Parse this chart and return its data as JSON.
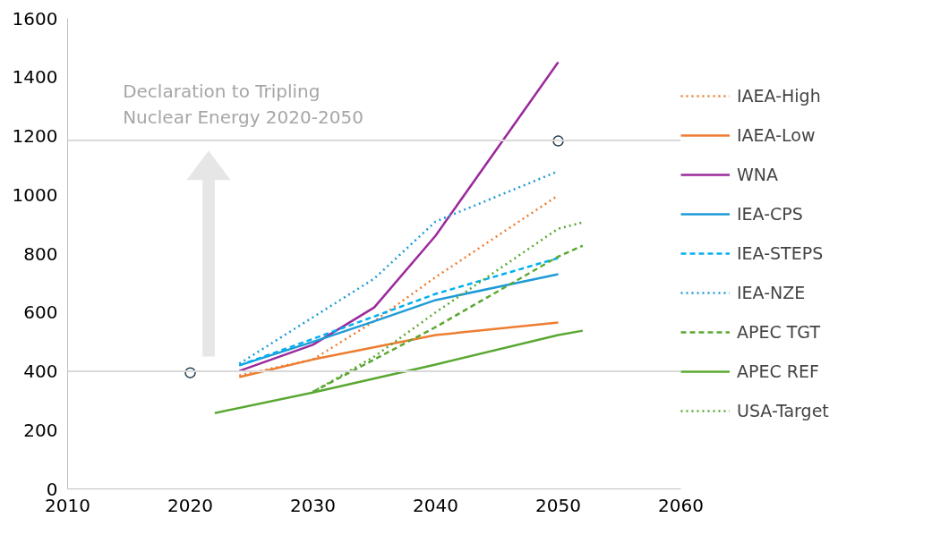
{
  "chart_data": {
    "type": "line",
    "xlim": [
      2010,
      2060
    ],
    "xticks": [
      2010,
      2020,
      2030,
      2040,
      2050,
      2060
    ],
    "ylim": [
      0,
      1600
    ],
    "yticks": [
      0,
      200,
      400,
      600,
      800,
      1000,
      1200,
      1400,
      1600
    ],
    "grid": false,
    "legend": "right",
    "marker": "none",
    "annotations": [
      {
        "text": "Declaration to Tripling Nuclear Energy 2020-2050",
        "x": 2014.5,
        "y": 1185
      }
    ],
    "ref_lines": [
      {
        "axis": "y",
        "value": 1185,
        "color": "#d9d9d9"
      },
      {
        "axis": "y",
        "value": 400,
        "color": "#d9d9d9"
      }
    ],
    "series": [
      {
        "name": "IAEA-High",
        "color": "#ed7d31",
        "line_style": "dotted",
        "x": [
          2024,
          2030,
          2035,
          2040,
          2050
        ],
        "values": [
          386,
          440,
          570,
          720,
          998
        ]
      },
      {
        "name": "IAEA-Low",
        "color": "#ed7d31",
        "line_style": "solid",
        "x": [
          2024,
          2030,
          2040,
          2050
        ],
        "values": [
          380,
          440,
          523,
          566
        ]
      },
      {
        "name": "WNA",
        "color": "#9b2a9b",
        "line_style": "solid",
        "x": [
          2024,
          2030,
          2035,
          2040,
          2050
        ],
        "values": [
          401,
          490,
          617,
          861,
          1451
        ]
      },
      {
        "name": "IEA-CPS",
        "color": "#1f9bd7",
        "line_style": "solid",
        "x": [
          2024,
          2030,
          2035,
          2040,
          2050
        ],
        "values": [
          420,
          500,
          570,
          642,
          730
        ]
      },
      {
        "name": "IEA-STEPS",
        "color": "#00b0f0",
        "line_style": "dashed",
        "x": [
          2024,
          2030,
          2040,
          2050
        ],
        "values": [
          420,
          510,
          663,
          785
        ]
      },
      {
        "name": "IEA-NZE",
        "color": "#1f9bd7",
        "line_style": "dotted",
        "x": [
          2024,
          2035,
          2040,
          2050
        ],
        "values": [
          426,
          715,
          909,
          1080
        ]
      },
      {
        "name": "APEC TGT",
        "color": "#5aa832",
        "line_style": "dashed",
        "x": [
          2030,
          2040,
          2050,
          2052
        ],
        "values": [
          330,
          550,
          790,
          827
        ]
      },
      {
        "name": "APEC REF",
        "color": "#5aa832",
        "line_style": "solid",
        "x": [
          2022,
          2030,
          2040,
          2050,
          2052
        ],
        "values": [
          258,
          328,
          423,
          523,
          538
        ]
      },
      {
        "name": "USA-Target",
        "color": "#5aa832",
        "line_style": "dotted",
        "x": [
          2030,
          2035,
          2040,
          2050,
          2052
        ],
        "values": [
          330,
          450,
          600,
          885,
          906
        ]
      },
      {
        "type": "scatter",
        "marker": "circle",
        "color": "#1f3b4d",
        "x": [
          2020,
          2050
        ],
        "values": [
          395,
          1183
        ]
      }
    ]
  }
}
